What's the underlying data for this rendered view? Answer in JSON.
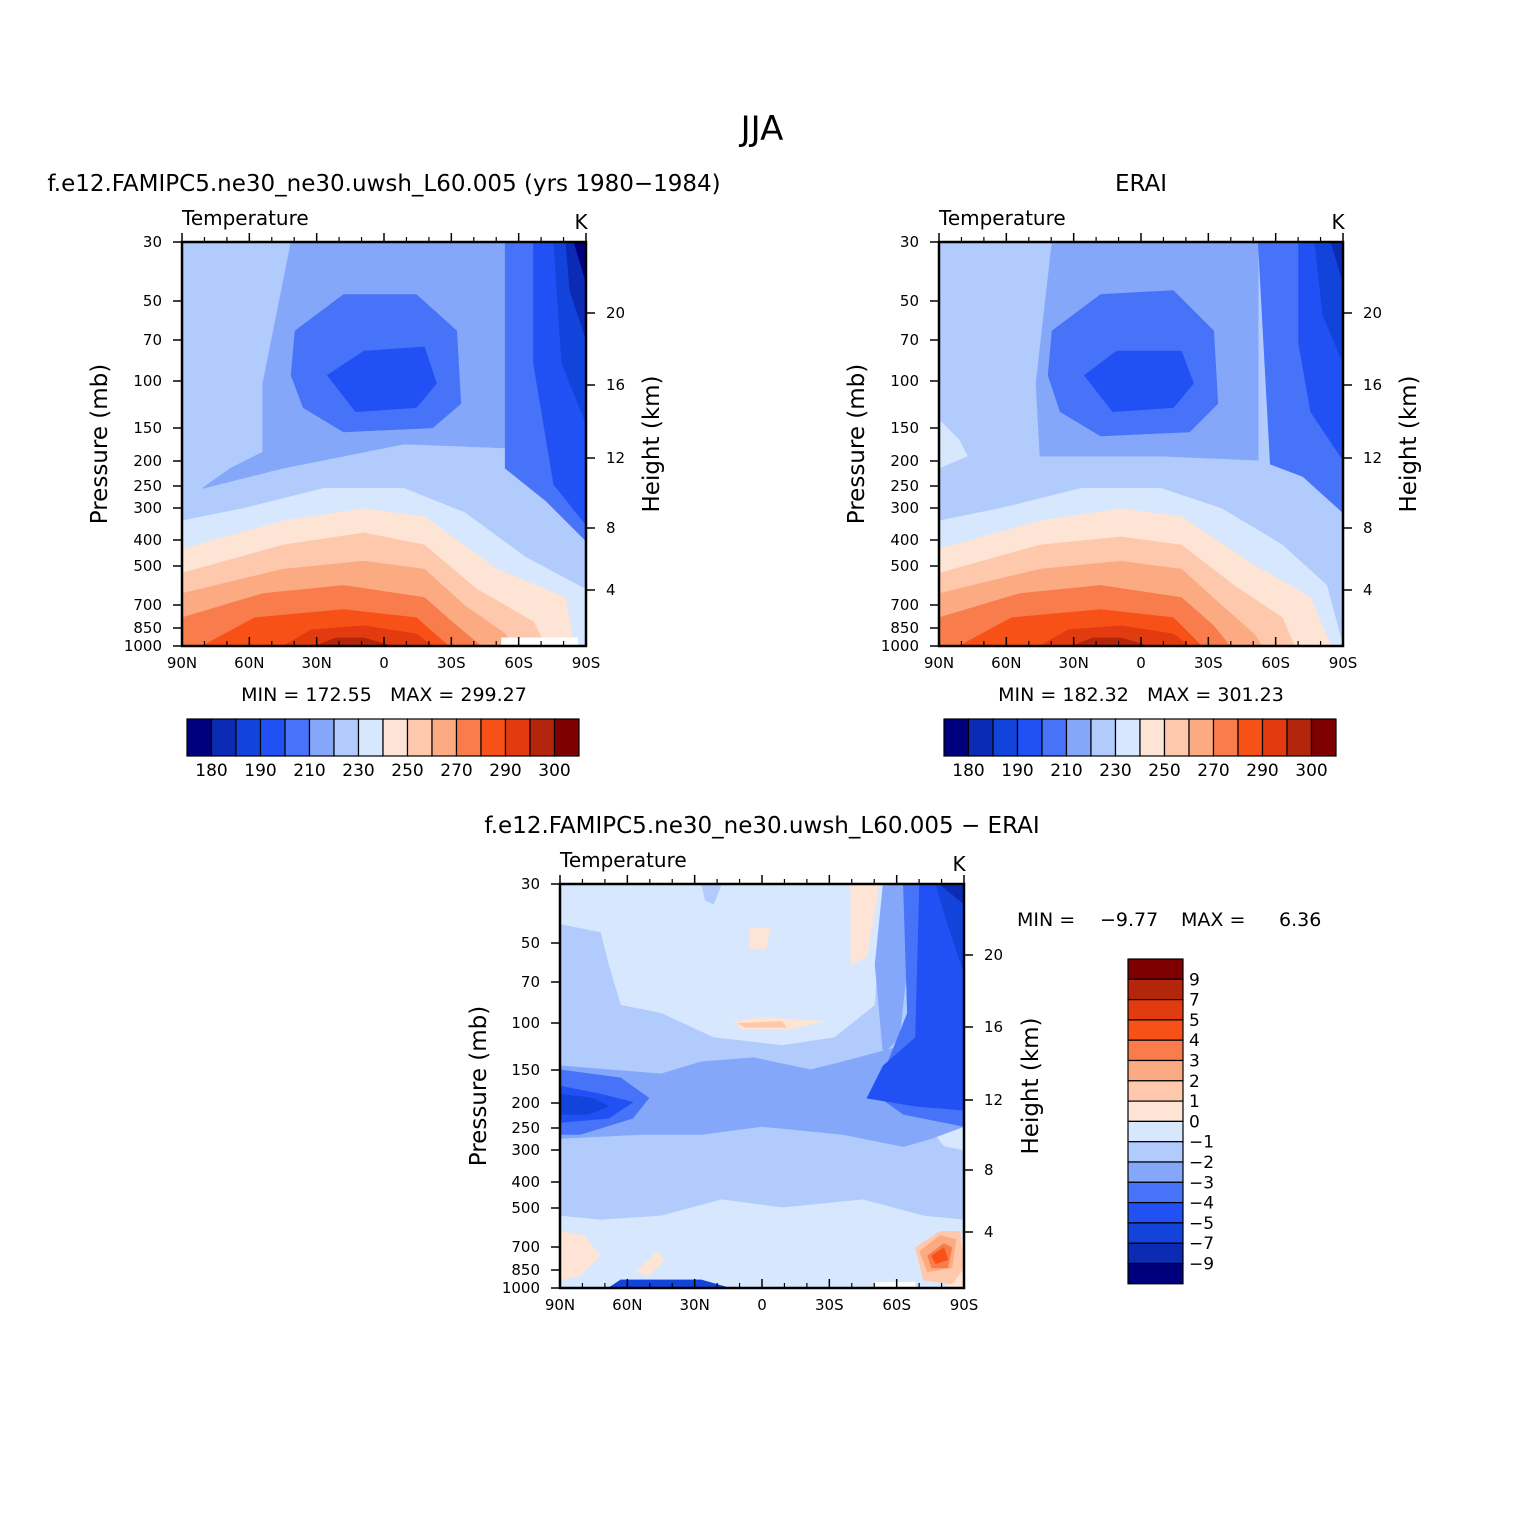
{
  "figure": {
    "title": "JJA"
  },
  "chart_data": [
    {
      "type": "heatmap",
      "title": "f.e12.FAMIPC5.ne30_ne30.uwsh_L60.005 (yrs 1980−1984)",
      "subtitle": "Temperature",
      "units": "K",
      "ylabel": "Pressure (mb)",
      "y2label": "Height (km)",
      "x_ticks": [
        "90N",
        "60N",
        "30N",
        "0",
        "30S",
        "60S",
        "90S"
      ],
      "y_ticks": [
        30,
        50,
        70,
        100,
        150,
        200,
        250,
        300,
        400,
        500,
        700,
        850,
        1000
      ],
      "y2_ticks": [
        20,
        16,
        12,
        8,
        4
      ],
      "stats": "MIN = 172.55   MAX = 299.27",
      "colorbar_labels": [
        "180",
        "190",
        "210",
        "230",
        "250",
        "270",
        "290",
        "300"
      ],
      "colorbar_levels": [
        180,
        185,
        190,
        200,
        210,
        220,
        230,
        240,
        250,
        260,
        270,
        280,
        290,
        295,
        300
      ],
      "colors": [
        "#00007f",
        "#0c2bb4",
        "#1244dc",
        "#2151f5",
        "#4673f8",
        "#84a7fa",
        "#b1cbfd",
        "#d6e7fe",
        "#fde4d4",
        "#fdc8ac",
        "#fbaa82",
        "#f97c4c",
        "#f85118",
        "#e23b10",
        "#b3260c",
        "#7f0000"
      ]
    },
    {
      "type": "heatmap",
      "title": "ERAI",
      "subtitle": "Temperature",
      "units": "K",
      "ylabel": "Pressure (mb)",
      "y2label": "Height (km)",
      "x_ticks": [
        "90N",
        "60N",
        "30N",
        "0",
        "30S",
        "60S",
        "90S"
      ],
      "y_ticks": [
        30,
        50,
        70,
        100,
        150,
        200,
        250,
        300,
        400,
        500,
        700,
        850,
        1000
      ],
      "y2_ticks": [
        20,
        16,
        12,
        8,
        4
      ],
      "stats": "MIN = 182.32   MAX = 301.23",
      "colorbar_labels": [
        "180",
        "190",
        "210",
        "230",
        "250",
        "270",
        "290",
        "300"
      ],
      "colorbar_levels": [
        180,
        185,
        190,
        200,
        210,
        220,
        230,
        240,
        250,
        260,
        270,
        280,
        290,
        295,
        300
      ],
      "colors": [
        "#00007f",
        "#0c2bb4",
        "#1244dc",
        "#2151f5",
        "#4673f8",
        "#84a7fa",
        "#b1cbfd",
        "#d6e7fe",
        "#fde4d4",
        "#fdc8ac",
        "#fbaa82",
        "#f97c4c",
        "#f85118",
        "#e23b10",
        "#b3260c",
        "#7f0000"
      ]
    },
    {
      "type": "heatmap",
      "title": "f.e12.FAMIPC5.ne30_ne30.uwsh_L60.005 − ERAI",
      "subtitle": "Temperature",
      "units": "K",
      "ylabel": "Pressure (mb)",
      "y2label": "Height (km)",
      "x_ticks": [
        "90N",
        "60N",
        "30N",
        "0",
        "30S",
        "60S",
        "90S"
      ],
      "y_ticks": [
        30,
        50,
        70,
        100,
        150,
        200,
        250,
        300,
        400,
        500,
        700,
        850,
        1000
      ],
      "y2_ticks": [
        20,
        16,
        12,
        8,
        4
      ],
      "stats_min_label": "MIN =",
      "stats_min": "−9.77",
      "stats_max_label": "MAX =",
      "stats_max": "6.36",
      "colorbar_labels": [
        "9",
        "7",
        "5",
        "4",
        "3",
        "2",
        "1",
        "0",
        "−1",
        "−2",
        "−3",
        "−4",
        "−5",
        "−7",
        "−9"
      ],
      "colors": [
        "#7f0000",
        "#b3260c",
        "#e23b10",
        "#f85118",
        "#f97c4c",
        "#fbaa82",
        "#fdc8ac",
        "#fde4d4",
        "#d6e7fe",
        "#b1cbfd",
        "#84a7fa",
        "#4673f8",
        "#2151f5",
        "#1244dc",
        "#0c2bb4",
        "#00007f"
      ]
    }
  ]
}
